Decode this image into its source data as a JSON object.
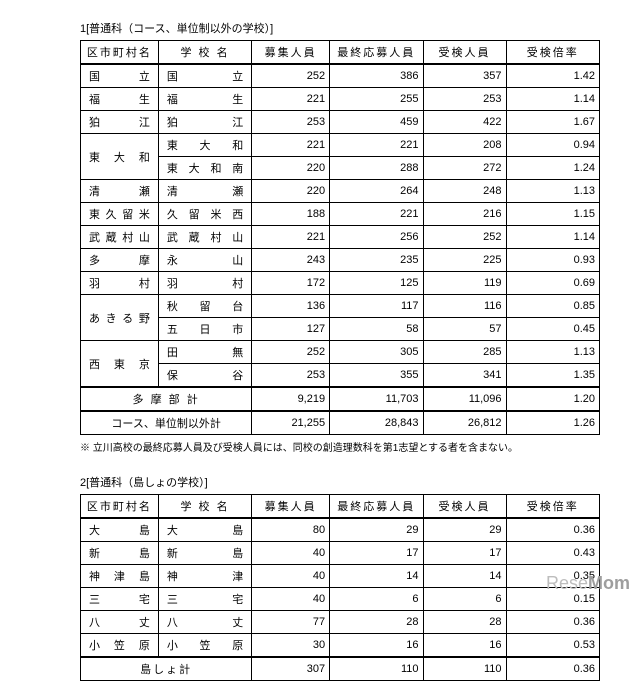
{
  "section1": {
    "title": "1[普通科（コース、単位制以外の学校）]",
    "headers": [
      "区市町村名",
      "学 校 名",
      "募集人員",
      "最終応募人員",
      "受検人員",
      "受検倍率"
    ],
    "rows": [
      {
        "muni": "国立",
        "school": "国立",
        "rec": 252,
        "app": 386,
        "exam": 357,
        "ratio": "1.42"
      },
      {
        "muni": "福生",
        "school": "福生",
        "rec": 221,
        "app": 255,
        "exam": 253,
        "ratio": "1.14"
      },
      {
        "muni": "狛江",
        "school": "狛江",
        "rec": 253,
        "app": 459,
        "exam": 422,
        "ratio": "1.67"
      },
      {
        "muni": "東大和",
        "school": "東大和",
        "rec": 221,
        "app": 221,
        "exam": 208,
        "ratio": "0.94"
      },
      {
        "muni": "",
        "school": "東大和南",
        "rec": 220,
        "app": 288,
        "exam": 272,
        "ratio": "1.24"
      },
      {
        "muni": "清瀬",
        "school": "清瀬",
        "rec": 220,
        "app": 264,
        "exam": 248,
        "ratio": "1.13"
      },
      {
        "muni": "東久留米",
        "school": "久留米西",
        "rec": 188,
        "app": 221,
        "exam": 216,
        "ratio": "1.15"
      },
      {
        "muni": "武蔵村山",
        "school": "武蔵村山",
        "rec": 221,
        "app": 256,
        "exam": 252,
        "ratio": "1.14"
      },
      {
        "muni": "多摩",
        "school": "永山",
        "rec": 243,
        "app": 235,
        "exam": 225,
        "ratio": "0.93"
      },
      {
        "muni": "羽村",
        "school": "羽村",
        "rec": 172,
        "app": 125,
        "exam": 119,
        "ratio": "0.69"
      },
      {
        "muni": "あきる野",
        "school": "秋留台",
        "rec": 136,
        "app": 117,
        "exam": 116,
        "ratio": "0.85"
      },
      {
        "muni": "",
        "school": "五日市",
        "rec": 127,
        "app": 58,
        "exam": 57,
        "ratio": "0.45"
      },
      {
        "muni": "西東京",
        "school": "田無",
        "rec": 252,
        "app": 305,
        "exam": 285,
        "ratio": "1.13"
      },
      {
        "muni": "",
        "school": "保谷",
        "rec": 253,
        "app": 355,
        "exam": 341,
        "ratio": "1.35"
      }
    ],
    "subtotal": {
      "label": "多 摩 部 計",
      "rec": "9,219",
      "app": "11,703",
      "exam": "11,096",
      "ratio": "1.20"
    },
    "total": {
      "label": "コース、単位制以外計",
      "rec": "21,255",
      "app": "28,843",
      "exam": "26,812",
      "ratio": "1.26"
    },
    "note": "※ 立川高校の最終応募人員及び受検人員には、同校の創造理数科を第1志望とする者を含まない。"
  },
  "section2": {
    "title": "2[普通科（島しょの学校）]",
    "headers": [
      "区市町村名",
      "学 校 名",
      "募集人員",
      "最終応募人員",
      "受検人員",
      "受検倍率"
    ],
    "rows": [
      {
        "muni": "大島",
        "school": "大島",
        "rec": 80,
        "app": 29,
        "exam": 29,
        "ratio": "0.36"
      },
      {
        "muni": "新島",
        "school": "新島",
        "rec": 40,
        "app": 17,
        "exam": 17,
        "ratio": "0.43"
      },
      {
        "muni": "神津島",
        "school": "神津",
        "rec": 40,
        "app": 14,
        "exam": 14,
        "ratio": "0.35"
      },
      {
        "muni": "三宅",
        "school": "三宅",
        "rec": 40,
        "app": 6,
        "exam": 6,
        "ratio": "0.15"
      },
      {
        "muni": "八丈",
        "school": "八丈",
        "rec": 77,
        "app": 28,
        "exam": 28,
        "ratio": "0.36"
      },
      {
        "muni": "小笠原",
        "school": "小笠原",
        "rec": 30,
        "app": 16,
        "exam": 16,
        "ratio": "0.53"
      }
    ],
    "subtotal": {
      "label": "島しょ計",
      "rec": "307",
      "app": "110",
      "exam": "110",
      "ratio": "0.36"
    }
  },
  "watermark": {
    "prefix": "Rese",
    "suffix": "Mom"
  }
}
